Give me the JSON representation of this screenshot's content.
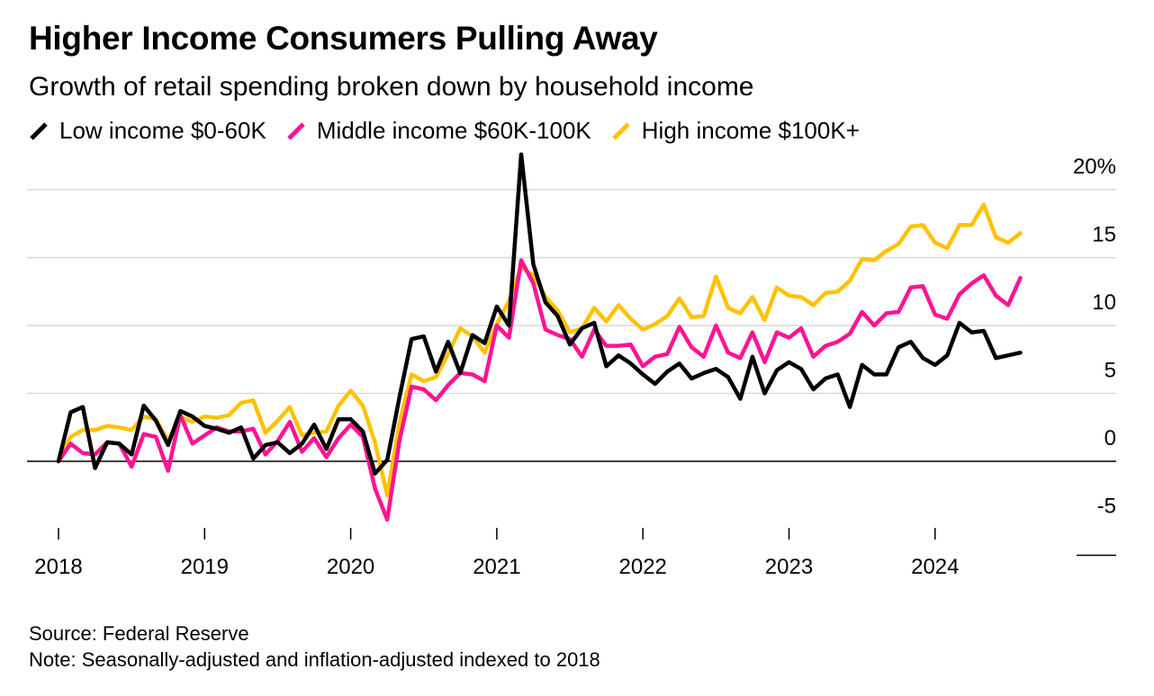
{
  "title": "Higher Income Consumers Pulling Away",
  "subtitle": "Growth of retail spending broken down by household income",
  "source": "Source: Federal Reserve",
  "note": "Note: Seasonally-adjusted and inflation-adjusted indexed to 2018",
  "chart_data": {
    "type": "line",
    "title": "Higher Income Consumers Pulling Away",
    "subtitle": "Growth of retail spending broken down by household income",
    "xlabel": "",
    "ylabel": "",
    "x_start": "2018-01",
    "x_ticks": [
      "2018",
      "2019",
      "2020",
      "2021",
      "2022",
      "2023",
      "2024"
    ],
    "y_ticks": [
      {
        "value": 20,
        "label": "20%"
      },
      {
        "value": 15,
        "label": "15"
      },
      {
        "value": 10,
        "label": "10"
      },
      {
        "value": 5,
        "label": "5"
      },
      {
        "value": 0,
        "label": "0"
      },
      {
        "value": -5,
        "label": "-5"
      }
    ],
    "ylim": [
      -5,
      20
    ],
    "grid": true,
    "legend_position": "top-left",
    "series": [
      {
        "name": "Low income $0-60K",
        "color": "#000000",
        "values": [
          0,
          3.6,
          4,
          -0.5,
          1.4,
          1.3,
          0.5,
          4.1,
          3,
          1.2,
          3.7,
          3.3,
          2.6,
          2.4,
          2.1,
          2.5,
          0.2,
          1.2,
          1.4,
          0.6,
          1.3,
          2.7,
          0.9,
          3.1,
          3.1,
          2.2,
          -0.9,
          0.1,
          4.7,
          9,
          9.2,
          6.6,
          8.8,
          6.5,
          9.3,
          8.7,
          11.4,
          10,
          22.6,
          14.5,
          11.7,
          10.7,
          8.6,
          9.8,
          10.2,
          7,
          7.8,
          7.2,
          6.4,
          5.7,
          6.6,
          7.2,
          6.1,
          6.5,
          6.8,
          6.2,
          4.6,
          7.7,
          5,
          6.7,
          7.3,
          6.8,
          5.3,
          6.1,
          6.4,
          4,
          7.1,
          6.4,
          6.4,
          8.4,
          8.8,
          7.6,
          7.1,
          7.8,
          10.2,
          9.5,
          9.6,
          7.6,
          7.8,
          8
        ],
        "labels": []
      },
      {
        "name": "Middle income $60K-100K",
        "color": "#ff1493",
        "values": [
          0,
          1.3,
          0.6,
          0.5,
          1.4,
          1.3,
          -0.4,
          2,
          1.8,
          -0.7,
          3.4,
          1.3,
          1.9,
          2.5,
          2.2,
          2.2,
          2.4,
          0.5,
          1.5,
          2.9,
          0.7,
          1.7,
          0.3,
          1.7,
          2.7,
          1.8,
          -2,
          -4.3,
          1.5,
          5.5,
          5.3,
          4.5,
          5.6,
          6.5,
          6.4,
          5.9,
          10,
          9.1,
          14.8,
          13.1,
          9.7,
          9.3,
          9,
          7.7,
          9.7,
          8.5,
          8.5,
          8.6,
          7,
          7.7,
          7.9,
          9.9,
          8.4,
          7.7,
          10,
          8,
          7.6,
          9.5,
          7.3,
          9.5,
          9.1,
          9.8,
          7.7,
          8.5,
          8.8,
          9.4,
          11,
          10,
          10.9,
          11,
          12.8,
          12.9,
          10.8,
          10.5,
          12.3,
          13.1,
          13.7,
          12.2,
          11.5,
          13.5
        ],
        "labels": []
      },
      {
        "name": "High income $100K+",
        "color": "#ffc200",
        "values": [
          0,
          1.8,
          2.3,
          2.3,
          2.6,
          2.5,
          2.3,
          3.3,
          3.1,
          1.5,
          3.3,
          2.9,
          3.3,
          3.2,
          3.4,
          4.3,
          4.5,
          2.1,
          3,
          4,
          1.9,
          2.1,
          2.2,
          4.1,
          5.2,
          4.1,
          1.4,
          -2.5,
          2.8,
          6.4,
          5.9,
          6.2,
          7.9,
          9.8,
          9.2,
          8,
          10.1,
          11.8,
          14.3,
          13.7,
          12.1,
          11.1,
          9.5,
          9.8,
          11.3,
          10.3,
          11.5,
          10.5,
          9.7,
          10.1,
          10.7,
          12,
          10.6,
          10.7,
          13.6,
          11.3,
          10.9,
          12.1,
          10.4,
          12.8,
          12.2,
          12.1,
          11.5,
          12.4,
          12.5,
          13.3,
          14.9,
          14.8,
          15.5,
          16,
          17.3,
          17.4,
          16.1,
          15.7,
          17.4,
          17.4,
          18.9,
          16.5,
          16.1,
          16.8
        ],
        "labels": []
      }
    ]
  }
}
